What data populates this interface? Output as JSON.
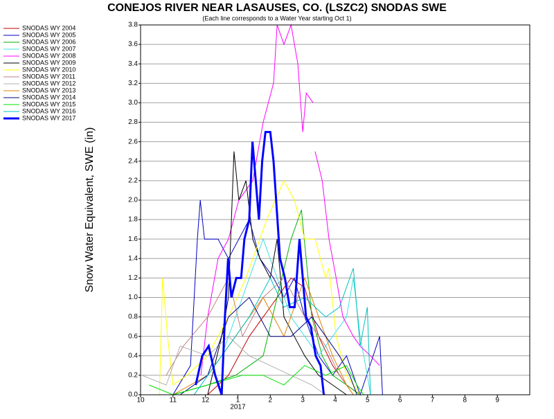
{
  "chart_data": {
    "type": "line",
    "title": "CONEJOS RIVER NEAR LASAUSES, CO. (LSZC2) SNODAS SWE",
    "subtitle": "(Each line corresponds to a Water Year starting Oct 1)",
    "y_label": "Snow Water Equivalent, SWE (in)",
    "annotation": "2017",
    "xlim": [
      0,
      12
    ],
    "ylim": [
      0,
      3.8
    ],
    "xticks": [
      {
        "value": 0,
        "label": "10"
      },
      {
        "value": 1,
        "label": "11"
      },
      {
        "value": 2,
        "label": "12"
      },
      {
        "value": 3,
        "label": "1"
      },
      {
        "value": 4,
        "label": "2"
      },
      {
        "value": 5,
        "label": "3"
      },
      {
        "value": 6,
        "label": "4"
      },
      {
        "value": 7,
        "label": "5"
      },
      {
        "value": 8,
        "label": "6"
      },
      {
        "value": 9,
        "label": "7"
      },
      {
        "value": 10,
        "label": "8"
      },
      {
        "value": 11,
        "label": "9"
      }
    ],
    "yticks": [
      {
        "value": 0,
        "label": "0.0"
      },
      0.2,
      0.4,
      0.6,
      0.8,
      {
        "value": 1,
        "label": "1.0"
      },
      1.2,
      1.4,
      1.6,
      1.8,
      {
        "value": 2,
        "label": "2.0"
      },
      2.2,
      2.4,
      2.6,
      2.8,
      {
        "value": 3,
        "label": "3.0"
      },
      3.2,
      3.4,
      3.6,
      3.8
    ],
    "grid": true,
    "series": [
      {
        "name": "SNODAS WY 2004",
        "color": "#c00000",
        "width": 1,
        "x": [
          2.07,
          2.71,
          3.35,
          4.0,
          4.64,
          5.06,
          5.49,
          5.92,
          6.35,
          6.77
        ],
        "values": [
          0,
          0.2,
          0.6,
          0.9,
          1.2,
          1.1,
          0.6,
          0.3,
          0.1,
          0
        ]
      },
      {
        "name": "SNODAS WY 2005",
        "color": "#0000c0",
        "width": 1,
        "x": [
          1.0,
          1.54,
          1.75,
          1.84,
          1.97,
          2.39,
          2.71,
          3.03,
          3.35,
          3.68,
          4.1,
          4.42,
          4.74,
          5.06,
          5.49,
          5.92,
          6.35,
          6.77,
          7.37,
          7.46
        ],
        "values": [
          0,
          0.3,
          1.6,
          2.0,
          1.6,
          1.6,
          1.4,
          1.6,
          1.8,
          1.4,
          1.2,
          1.0,
          1.2,
          0.8,
          0.4,
          0.2,
          0.4,
          0,
          0.6,
          0
        ]
      },
      {
        "name": "SNODAS WY 2006",
        "color": "#00b000",
        "width": 1,
        "x": [
          1.0,
          2.07,
          2.93,
          3.78,
          4.64,
          4.96,
          5.28,
          5.6,
          5.92,
          6.35,
          6.77
        ],
        "values": [
          0,
          0.1,
          0.2,
          0.4,
          1.6,
          1.9,
          0.8,
          0.4,
          0.2,
          0.1,
          0
        ]
      },
      {
        "name": "SNODAS WY 2007",
        "color": "#40e0e0",
        "width": 1,
        "x": [
          1.65,
          2.5,
          3.14,
          3.78,
          4.21,
          4.64,
          5.06,
          5.49,
          5.92,
          6.35,
          6.56,
          6.77,
          6.99,
          7.09
        ],
        "values": [
          0,
          0.4,
          1.0,
          1.6,
          1.2,
          0.8,
          0.6,
          0.4,
          0.6,
          0.8,
          1.2,
          0.6,
          0.2,
          0
        ]
      },
      {
        "name": "SNODAS WY 2008",
        "color": "#ff00ff",
        "width": 1,
        "x": [
          1.86,
          2.07,
          2.39,
          2.71,
          3.03,
          3.46,
          3.78,
          4.1,
          4.21,
          4.42,
          4.64,
          4.85,
          5.0,
          5.11,
          5.32,
          5.35,
          5.38,
          5.6,
          5.81,
          6.03,
          6.24,
          6.56,
          6.77,
          7.09,
          7.37
        ],
        "values": [
          0.2,
          0.8,
          1.4,
          1.6,
          2.0,
          2.2,
          2.8,
          3.2,
          3.8,
          3.6,
          3.8,
          3.4,
          2.7,
          3.1,
          3.0,
          null,
          2.5,
          2.2,
          1.6,
          1.2,
          0.8,
          0.6,
          0.5,
          0.4,
          0.3
        ]
      },
      {
        "name": "SNODAS WY 2009",
        "color": "#000000",
        "width": 1,
        "x": [
          2.07,
          2.5,
          2.71,
          2.88,
          3.03,
          3.25,
          3.46,
          3.68,
          4.0,
          4.21,
          4.42,
          4.74,
          5.06,
          5.49,
          5.92,
          6.35
        ],
        "values": [
          0,
          0.6,
          1.0,
          2.5,
          2.0,
          2.2,
          1.6,
          1.4,
          1.2,
          1.6,
          0.8,
          0.6,
          0.4,
          0.2,
          0.1,
          0
        ]
      },
      {
        "name": "SNODAS WY 2010",
        "color": "#ffff00",
        "width": 1,
        "x": [
          0.58,
          0.68,
          0.83,
          1.0,
          1.43,
          2.07,
          2.71,
          3.25,
          3.89,
          4.42,
          4.74,
          5.06,
          5.38,
          5.71,
          5.81,
          6.03,
          6.35,
          6.77
        ],
        "values": [
          0,
          1.2,
          0.6,
          0.1,
          0.2,
          0.4,
          0.8,
          1.2,
          1.8,
          2.2,
          2.0,
          1.6,
          1.6,
          1.2,
          1.3,
          0.6,
          0.2,
          0
        ]
      },
      {
        "name": "SNODAS WY 2011",
        "color": "#c08080",
        "width": 1,
        "x": [
          0.79,
          1.32,
          2.07,
          2.71,
          3.14,
          3.78,
          4.42,
          5.06,
          5.71,
          6.13,
          6.56
        ],
        "values": [
          0.2,
          0.5,
          0.8,
          1.2,
          0.6,
          1.0,
          1.2,
          0.8,
          0.5,
          0.2,
          0
        ]
      },
      {
        "name": "SNODAS WY 2012",
        "color": "#b0b0b0",
        "width": 1,
        "x": [
          0.04,
          0.79,
          1.22,
          2.07,
          2.71,
          3.35,
          4.0,
          4.64,
          5.28,
          5.71
        ],
        "values": [
          0.2,
          0.1,
          0.5,
          0.4,
          0.6,
          0.4,
          0.3,
          0.2,
          0.1,
          0
        ]
      },
      {
        "name": "SNODAS WY 2013",
        "color": "#e08000",
        "width": 1,
        "x": [
          1.0,
          2.07,
          2.93,
          3.78,
          4.42,
          5.06,
          5.49,
          5.92,
          6.35,
          6.56
        ],
        "values": [
          0,
          0.2,
          0.6,
          1.0,
          0.6,
          1.2,
          0.8,
          0.4,
          0.1,
          0
        ]
      },
      {
        "name": "SNODAS WY 2014",
        "color": "#000080",
        "width": 1,
        "x": [
          1.22,
          2.07,
          2.71,
          3.35,
          4.0,
          4.64,
          5.28,
          5.71,
          6.13,
          6.45,
          6.67
        ],
        "values": [
          0,
          0.2,
          0.8,
          1.0,
          0.6,
          0.6,
          0.8,
          0.6,
          0.4,
          0.2,
          0
        ]
      },
      {
        "name": "SNODAS WY 2015",
        "color": "#00e000",
        "width": 1,
        "x": [
          0.26,
          1.0,
          2.07,
          3.14,
          3.78,
          4.42,
          5.06,
          5.71,
          6.35,
          6.67,
          6.88
        ],
        "values": [
          0.1,
          0,
          0.1,
          0.2,
          0.2,
          0.1,
          0.3,
          0.2,
          0.3,
          0.1,
          0
        ]
      },
      {
        "name": "SNODAS WY 2016",
        "color": "#00c0c0",
        "width": 1,
        "x": [
          1.65,
          2.5,
          3.35,
          4.0,
          4.42,
          5.06,
          5.71,
          6.13,
          6.56,
          6.77,
          6.99,
          7.09
        ],
        "values": [
          0,
          0.4,
          0.8,
          1.2,
          0.9,
          1.0,
          0.8,
          0.9,
          1.3,
          0.5,
          0.9,
          0
        ]
      },
      {
        "name": "SNODAS WY 2017",
        "color": "#0000ff",
        "width": 3,
        "x": [
          1.7,
          1.9,
          2.1,
          2.3,
          2.5,
          2.6,
          2.7,
          2.8,
          2.95,
          3.1,
          3.2,
          3.35,
          3.45,
          3.55,
          3.65,
          3.75,
          3.85,
          4.0,
          4.1,
          4.2,
          4.3,
          4.45,
          4.6,
          4.75,
          4.9,
          5.0,
          5.1,
          5.25,
          5.4,
          5.55,
          5.65
        ],
        "values": [
          0.1,
          0.4,
          0.5,
          0.2,
          0,
          0.8,
          1.4,
          1.0,
          1.2,
          1.2,
          1.6,
          1.8,
          2.6,
          2.2,
          1.8,
          2.4,
          2.7,
          2.7,
          2.4,
          1.9,
          1.4,
          1.2,
          0.9,
          0.9,
          1.6,
          1.2,
          0.8,
          0.7,
          0.4,
          0.3,
          0
        ]
      }
    ]
  }
}
